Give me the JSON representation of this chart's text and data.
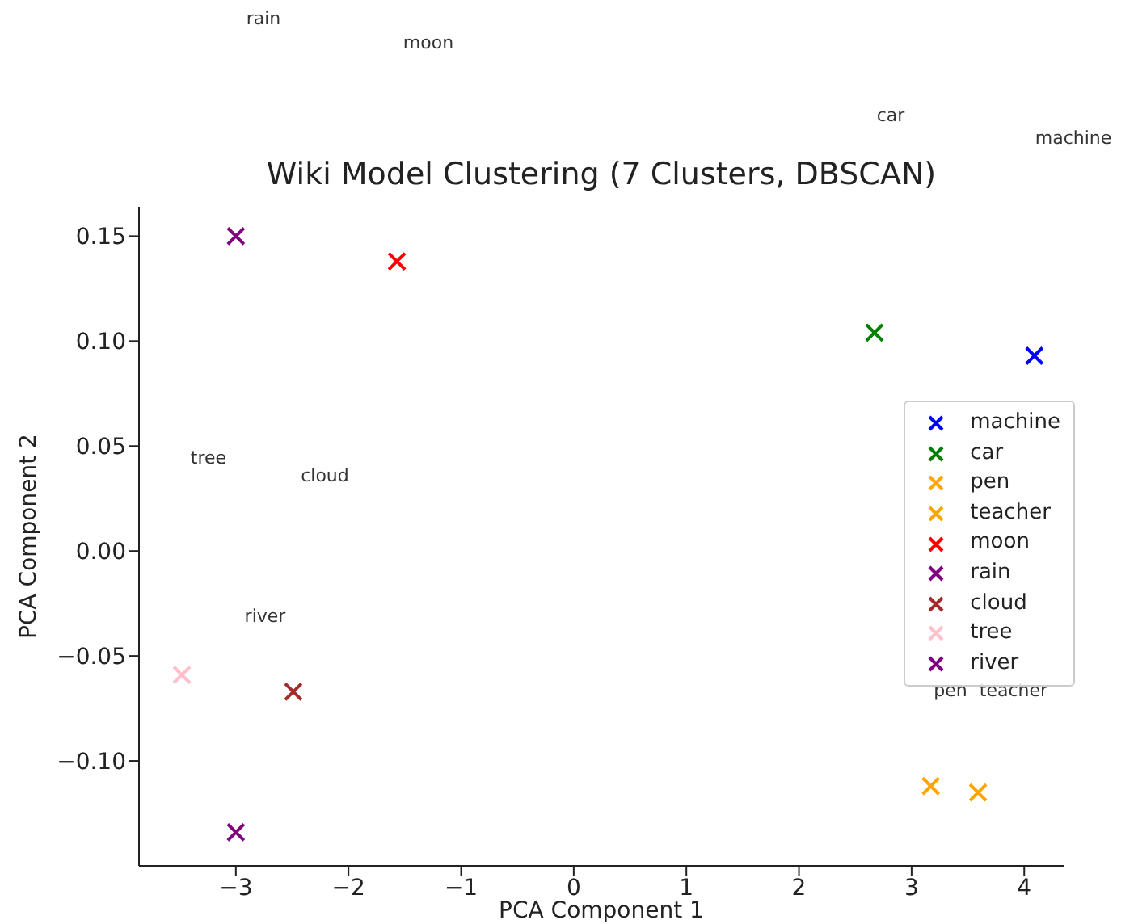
{
  "chart_data": {
    "type": "scatter",
    "title": "Wiki Model Clustering (7 Clusters, DBSCAN)",
    "xlabel": "PCA Component 1",
    "ylabel": "PCA Component 2",
    "xlim": [
      -3.86,
      4.35
    ],
    "xticks": [
      -3,
      -2,
      -1,
      0,
      1,
      2,
      3,
      4
    ],
    "ylim": [
      -0.15,
      0.164
    ],
    "yticks": [
      0.15,
      {
        "value": 0.1,
        "label": "0.10"
      },
      0.05,
      {
        "value": 0,
        "label": "0.00"
      },
      -0.05,
      {
        "value": -0.1,
        "label": "−0.10"
      }
    ],
    "marker": "cross",
    "legend": "right",
    "grid": false,
    "series": [
      {
        "name": "machine",
        "color": "#0000ff",
        "x": [
          4.09
        ],
        "values": [
          0.093
        ]
      },
      {
        "name": "car",
        "color": "#008000",
        "x": [
          2.67
        ],
        "values": [
          0.104
        ]
      },
      {
        "name": "pen",
        "color": "#ffa500",
        "x": [
          3.17
        ],
        "values": [
          -0.112
        ]
      },
      {
        "name": "teacher",
        "color": "#ffa500",
        "x": [
          3.59
        ],
        "values": [
          -0.115
        ]
      },
      {
        "name": "moon",
        "color": "#ff0000",
        "x": [
          -1.57
        ],
        "values": [
          0.138
        ]
      },
      {
        "name": "rain",
        "color": "#800080",
        "x": [
          -3.0
        ],
        "values": [
          0.15
        ]
      },
      {
        "name": "cloud",
        "color": "#a52a2a",
        "x": [
          -2.49
        ],
        "values": [
          -0.067
        ]
      },
      {
        "name": "tree",
        "color": "#ffc0cb",
        "x": [
          -3.48
        ],
        "values": [
          -0.059
        ]
      },
      {
        "name": "river",
        "color": "#800080",
        "x": [
          -3.0
        ],
        "values": [
          -0.134
        ]
      }
    ],
    "annotations": [
      "rain",
      "moon",
      "car",
      "machine",
      "tree",
      "cloud",
      "river",
      "pen",
      "teacher"
    ]
  }
}
